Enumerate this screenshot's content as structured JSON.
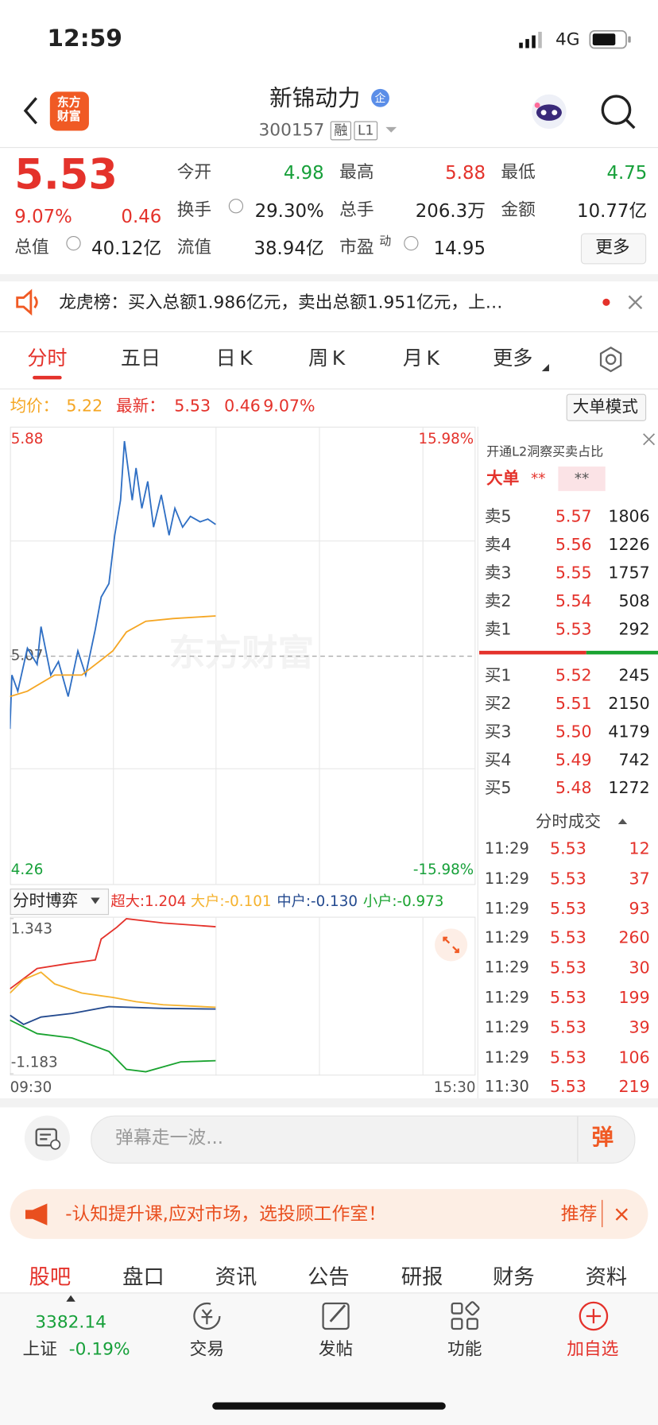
{
  "status": {
    "time": "12:59",
    "network": "4G"
  },
  "header": {
    "logo": "东方财富",
    "title": "新锦动力",
    "title_badge": "企",
    "code": "300157",
    "badges": [
      "融",
      "L1"
    ]
  },
  "quote": {
    "price": "5.53",
    "change_pct": "9.07%",
    "change": "0.46",
    "stats": [
      [
        "今开",
        "4.98"
      ],
      [
        "最高",
        "5.88"
      ],
      [
        "最低",
        "4.75"
      ],
      [
        "换手",
        "29.30%"
      ],
      [
        "总手",
        "206.3万"
      ],
      [
        "金额",
        "10.77亿"
      ],
      [
        "总值",
        "40.12亿"
      ],
      [
        "流值",
        "38.94亿"
      ],
      [
        "市盈",
        "14.95"
      ]
    ],
    "pe_tag": "动",
    "more": "更多"
  },
  "notice": "龙虎榜：买入总额1.986亿元，卖出总额1.951亿元，上…",
  "tabs": [
    "分时",
    "五日",
    "日K",
    "周K",
    "月K",
    "更多"
  ],
  "info": {
    "avg_value": "5.22",
    "latest_value": "5.53",
    "change": "0.46",
    "change_pct": "9.07%",
    "mode_button": "大单模式"
  },
  "price_chart": {
    "type": "line",
    "xlim": [
      0,
      240
    ],
    "ylim": [
      4.26,
      5.88
    ],
    "yticks": [
      4.26,
      5.07,
      5.88
    ],
    "y2lim": [
      -15.98,
      15.98
    ],
    "y2ticks": [
      {
        "value": -15.98,
        "label": "-15.98%"
      },
      {
        "value": 15.98,
        "label": "15.98%"
      }
    ],
    "watermark": "东方财富",
    "series": [
      {
        "name": "最新：",
        "color": "#2f6fc4",
        "x": [
          0,
          1,
          4,
          9,
          14,
          16,
          21,
          25,
          30,
          35,
          39,
          44,
          47,
          51,
          54,
          57,
          59,
          63,
          65,
          68,
          71,
          74,
          78,
          82,
          85,
          89,
          93,
          98,
          102,
          106
        ],
        "values": [
          4.8,
          5.0,
          4.94,
          5.1,
          5.04,
          5.18,
          5.0,
          5.05,
          4.92,
          5.09,
          5.0,
          5.17,
          5.29,
          5.34,
          5.52,
          5.65,
          5.87,
          5.65,
          5.77,
          5.62,
          5.72,
          5.55,
          5.67,
          5.52,
          5.62,
          5.55,
          5.59,
          5.57,
          5.58,
          5.56
        ]
      },
      {
        "name": "均价：",
        "color": "#f5a623",
        "x": [
          0,
          9,
          23,
          37,
          46,
          53,
          60,
          70,
          84,
          106
        ],
        "values": [
          4.92,
          4.94,
          5.0,
          5.0,
          5.05,
          5.09,
          5.16,
          5.2,
          5.21,
          5.22
        ]
      }
    ]
  },
  "flow_chart": {
    "type": "line",
    "title": "分时博弈",
    "xlim": [
      0,
      240
    ],
    "ylim": [
      -1.183,
      1.343
    ],
    "yticks": [
      -1.183,
      1.343
    ],
    "xticks": [
      {
        "value": 0,
        "label": "09:30"
      },
      {
        "value": 240,
        "label": "15:30"
      }
    ],
    "series": [
      {
        "name": "超大:1.204",
        "color": "#e4322b",
        "x": [
          0,
          14,
          30,
          44,
          47,
          55,
          60,
          79,
          106
        ],
        "values": [
          0.2,
          0.53,
          0.61,
          0.67,
          1.01,
          1.2,
          1.34,
          1.27,
          1.21
        ]
      },
      {
        "name": "大户:-0.101",
        "color": "#f5b22e",
        "x": [
          0,
          7,
          16,
          23,
          37,
          53,
          65,
          79,
          106
        ],
        "values": [
          0.13,
          0.35,
          0.47,
          0.28,
          0.13,
          0.06,
          -0.01,
          -0.06,
          -0.1
        ]
      },
      {
        "name": "中户:-0.130",
        "color": "#244a8f",
        "x": [
          0,
          7,
          16,
          32,
          51,
          79,
          106
        ],
        "values": [
          -0.23,
          -0.38,
          -0.26,
          -0.2,
          -0.09,
          -0.12,
          -0.13
        ]
      },
      {
        "name": "小户:-0.973",
        "color": "#1aa330",
        "x": [
          0,
          14,
          32,
          51,
          60,
          70,
          88,
          106
        ],
        "values": [
          -0.31,
          -0.53,
          -0.6,
          -0.82,
          -1.11,
          -1.15,
          -0.99,
          -0.97
        ]
      }
    ]
  },
  "order_book": {
    "promo": "开通L2洞察买卖占比",
    "big_order": "大单",
    "masked": [
      "**",
      "**"
    ],
    "asks": [
      [
        "卖5",
        "5.57",
        "1806"
      ],
      [
        "卖4",
        "5.56",
        "1226"
      ],
      [
        "卖3",
        "5.55",
        "1757"
      ],
      [
        "卖2",
        "5.54",
        "508"
      ],
      [
        "卖1",
        "5.53",
        "292"
      ]
    ],
    "bids": [
      [
        "买1",
        "5.52",
        "245"
      ],
      [
        "买2",
        "5.51",
        "2150"
      ],
      [
        "买3",
        "5.50",
        "4179"
      ],
      [
        "买4",
        "5.49",
        "742"
      ],
      [
        "买5",
        "5.48",
        "1272"
      ]
    ],
    "trades_title": "分时成交",
    "trades": [
      [
        "11:29",
        "5.53",
        "12"
      ],
      [
        "11:29",
        "5.53",
        "37"
      ],
      [
        "11:29",
        "5.53",
        "93"
      ],
      [
        "11:29",
        "5.53",
        "260"
      ],
      [
        "11:29",
        "5.53",
        "30"
      ],
      [
        "11:29",
        "5.53",
        "199"
      ],
      [
        "11:29",
        "5.53",
        "39"
      ],
      [
        "11:29",
        "5.53",
        "106"
      ],
      [
        "11:30",
        "5.53",
        "219"
      ]
    ]
  },
  "comment": {
    "placeholder": "弹幕走一波...",
    "button": "弹"
  },
  "banner": {
    "text": "-认知提升课,应对市场，选投顾工作室！",
    "link": "推荐"
  },
  "bottom_tabs": [
    "股吧",
    "盘口",
    "资讯",
    "公告",
    "研报",
    "财务",
    "资料"
  ],
  "nav": {
    "index_value": "3382.14",
    "index_name": "上证",
    "index_change": "-0.19%",
    "items": [
      "交易",
      "发帖",
      "功能",
      "加自选"
    ]
  }
}
